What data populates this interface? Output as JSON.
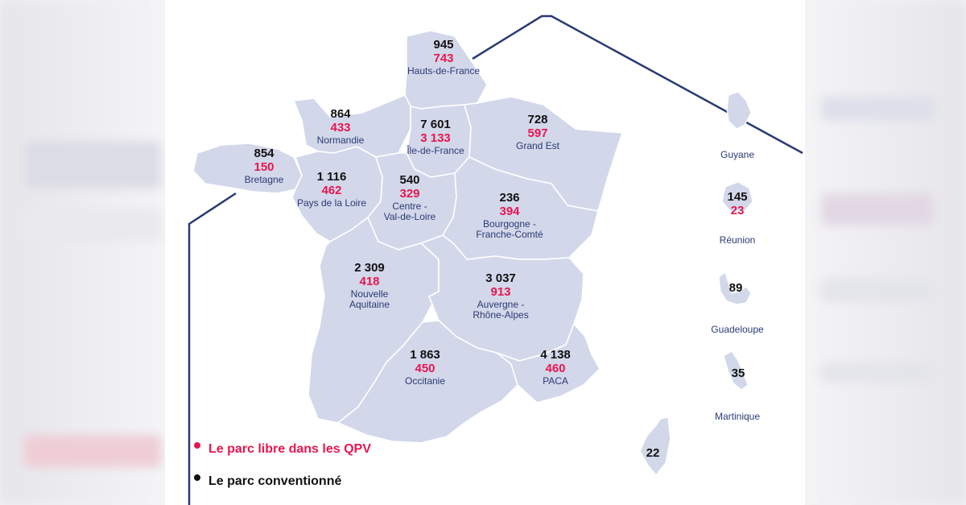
{
  "legend": {
    "qpv_label": "Le parc libre dans les QPV",
    "conv_label": "Le parc conventionné",
    "qpv_color": "#e8174f",
    "conv_color": "#111111"
  },
  "regions": {
    "hauts_de_france": {
      "name": "Hauts-de-France",
      "conventionne": "945",
      "qpv": "743"
    },
    "normandie": {
      "name": "Normandie",
      "conventionne": "864",
      "qpv": "433"
    },
    "ile_de_france": {
      "name": "Île-de-France",
      "conventionne": "7 601",
      "qpv": "3 133"
    },
    "grand_est": {
      "name": "Grand Est",
      "conventionne": "728",
      "qpv": "597"
    },
    "bretagne": {
      "name": "Bretagne",
      "conventionne": "854",
      "qpv": "150"
    },
    "pays_de_la_loire": {
      "name": "Pays de la Loire",
      "conventionne": "1 116",
      "qpv": "462"
    },
    "centre_val_de_loire": {
      "name_line1": "Centre -",
      "name_line2": "Val-de-Loire",
      "conventionne": "540",
      "qpv": "329"
    },
    "bourgogne_franche_comte": {
      "name_line1": "Bourgogne -",
      "name_line2": "Franche-Comté",
      "conventionne": "236",
      "qpv": "394"
    },
    "nouvelle_aquitaine": {
      "name_line1": "Nouvelle",
      "name_line2": "Aquitaine",
      "conventionne": "2 309",
      "qpv": "418"
    },
    "auvergne_rhone_alpes": {
      "name_line1": "Auvergne -",
      "name_line2": "Rhône-Alpes",
      "conventionne": "3 037",
      "qpv": "913"
    },
    "occitanie": {
      "name": "Occitanie",
      "conventionne": "1 863",
      "qpv": "450"
    },
    "paca": {
      "name": "PACA",
      "conventionne": "4 138",
      "qpv": "460"
    },
    "corse": {
      "conventionne": "22"
    }
  },
  "overseas": {
    "guyane": {
      "name": "Guyane"
    },
    "reunion": {
      "name": "Réunion",
      "conventionne": "145",
      "qpv": "23"
    },
    "guadeloupe": {
      "name": "Guadeloupe",
      "conventionne": "89"
    },
    "martinique": {
      "name": "Martinique",
      "conventionne": "35"
    }
  },
  "colors": {
    "map_fill": "#d3d7ea",
    "border": "#ffffff",
    "frame_line": "#2a3a74",
    "region_name": "#2a3a74"
  }
}
